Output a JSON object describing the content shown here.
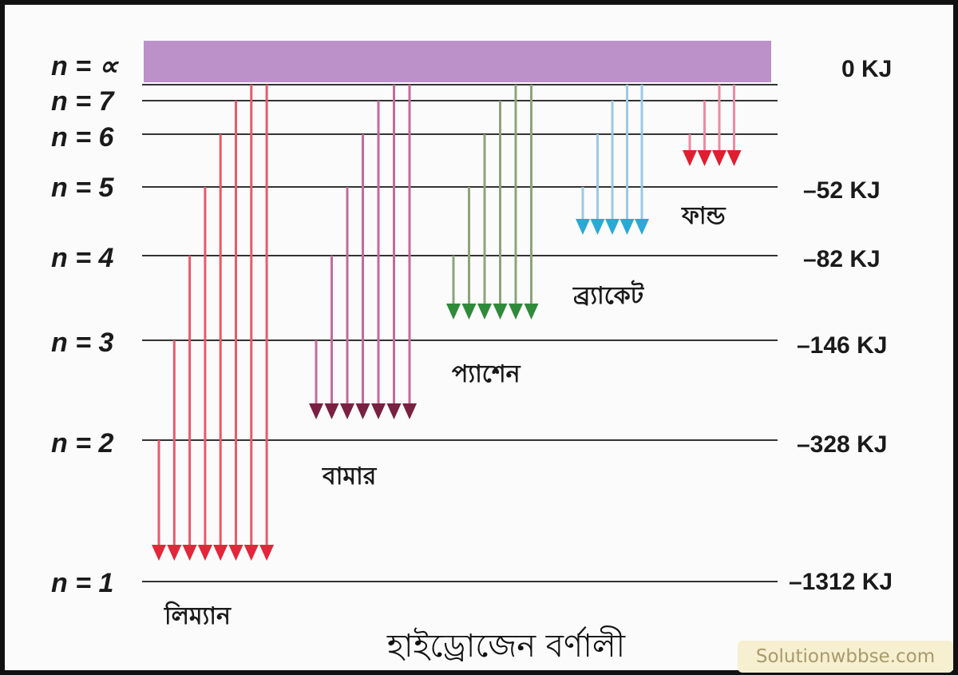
{
  "caption": "হাইড্রোজেন বর্ণালী",
  "watermark": "Solutionwbbse.com",
  "levels": [
    {
      "n": "∞",
      "label": "n = ∝",
      "energy": "0 KJ"
    },
    {
      "n": 7,
      "label": "n = 7",
      "energy": ""
    },
    {
      "n": 6,
      "label": "n = 6",
      "energy": ""
    },
    {
      "n": 5,
      "label": "n = 5",
      "energy": "–52 KJ"
    },
    {
      "n": 4,
      "label": "n = 4",
      "energy": "–82 KJ"
    },
    {
      "n": 3,
      "label": "n = 3",
      "energy": "–146 KJ"
    },
    {
      "n": 2,
      "label": "n = 2",
      "energy": "–328 KJ"
    },
    {
      "n": 1,
      "label": "n = 1",
      "energy": "–1312 KJ"
    }
  ],
  "series": [
    {
      "name": "লিম্যান",
      "lower_n": 1,
      "color": "#e85a6a",
      "arrow_color": "#e3263a",
      "transitions": 8
    },
    {
      "name": "বামার",
      "lower_n": 2,
      "color": "#c46a9a",
      "arrow_color": "#7a2040",
      "transitions": 7
    },
    {
      "name": "প্যাশেন",
      "lower_n": 3,
      "color": "#8ea37a",
      "arrow_color": "#2f8a3a",
      "transitions": 6
    },
    {
      "name": "ব্র্যাকেট",
      "lower_n": 4,
      "color": "#9cc9e6",
      "arrow_color": "#2aa9d8",
      "transitions": 5
    },
    {
      "name": "ফান্ড",
      "lower_n": 5,
      "color": "#ee8aa0",
      "arrow_color": "#e01e30",
      "transitions": 4
    }
  ],
  "colors": {
    "continuum": "#b07cc0",
    "level_line": "#333333"
  }
}
